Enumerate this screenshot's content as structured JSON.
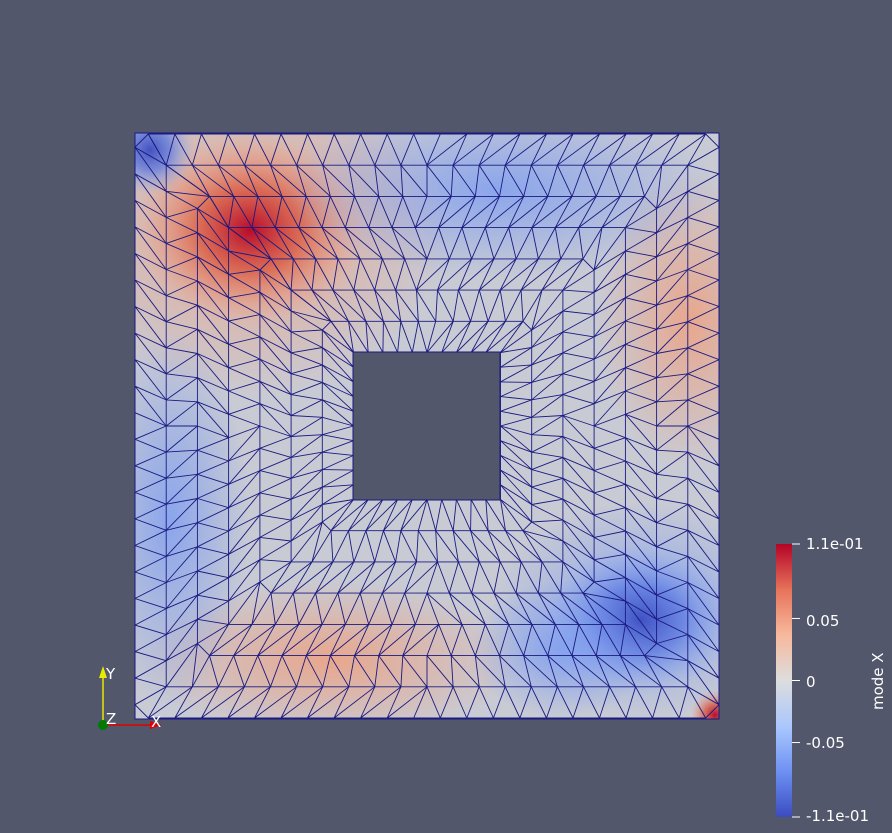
{
  "scene": {
    "background": "#52576b",
    "mesh_edge_color": "#1a1a80",
    "field": "mode X",
    "range": [
      -0.11,
      0.11
    ]
  },
  "colorbar": {
    "title": "mode X",
    "labels": [
      "1.1e-01",
      "0.05",
      "0",
      "-0.05",
      "-1.1e-01"
    ],
    "values": [
      0.11,
      0.05,
      0,
      -0.05,
      -0.11
    ],
    "colormap": [
      "#3b4cc0",
      "#6f92f3",
      "#aac7fd",
      "#dddddd",
      "#f7b89c",
      "#e7745b",
      "#b40426"
    ]
  },
  "axes": {
    "x": "X",
    "y": "Y",
    "z": "Z"
  }
}
